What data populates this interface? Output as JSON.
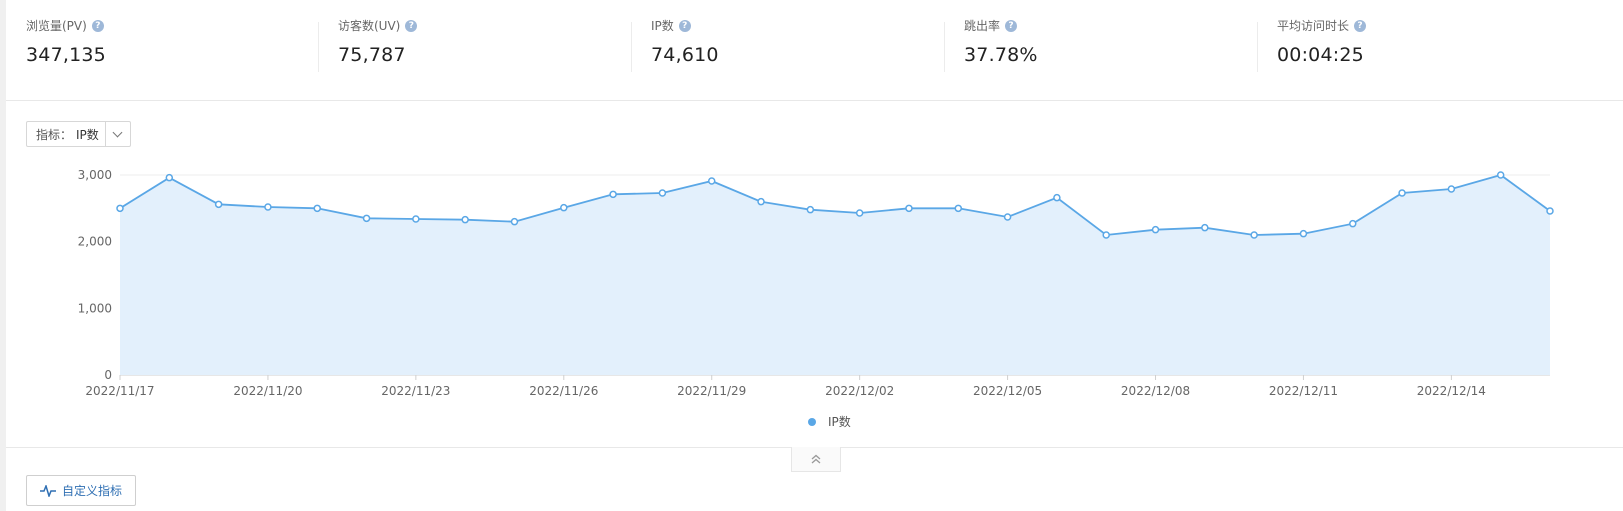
{
  "stats": [
    {
      "label": "浏览量(PV)",
      "value": "347,135"
    },
    {
      "label": "访客数(UV)",
      "value": "75,787"
    },
    {
      "label": "IP数",
      "value": "74,610"
    },
    {
      "label": "跳出率",
      "value": "37.78%"
    },
    {
      "label": "平均访问时长",
      "value": "00:04:25"
    }
  ],
  "metric_selector": {
    "label": "指标：",
    "value": "IP数"
  },
  "legend": {
    "label": "IP数"
  },
  "custom_metric_button": {
    "label": "自定义指标"
  },
  "colors": {
    "line": "#5aa7e6",
    "area": "#e3f0fc",
    "grid": "#ececec"
  },
  "chart_data": {
    "type": "area",
    "x": [
      "2022/11/17",
      "2022/11/18",
      "2022/11/19",
      "2022/11/20",
      "2022/11/21",
      "2022/11/22",
      "2022/11/23",
      "2022/11/24",
      "2022/11/25",
      "2022/11/26",
      "2022/11/27",
      "2022/11/28",
      "2022/11/29",
      "2022/11/30",
      "2022/12/01",
      "2022/12/02",
      "2022/12/03",
      "2022/12/04",
      "2022/12/05",
      "2022/12/06",
      "2022/12/07",
      "2022/12/08",
      "2022/12/09",
      "2022/12/10",
      "2022/12/11",
      "2022/12/12",
      "2022/12/13",
      "2022/12/14",
      "2022/12/15",
      "2022/12/16"
    ],
    "series": [
      {
        "name": "IP数",
        "values": [
          2500,
          2960,
          2560,
          2520,
          2500,
          2350,
          2340,
          2330,
          2300,
          2510,
          2710,
          2730,
          2910,
          2600,
          2480,
          2430,
          2500,
          2500,
          2370,
          2660,
          2100,
          2180,
          2210,
          2100,
          2120,
          2270,
          2730,
          2790,
          3000,
          2460
        ]
      }
    ],
    "x_tick_labels": [
      "2022/11/17",
      "2022/11/20",
      "2022/11/23",
      "2022/11/26",
      "2022/11/29",
      "2022/12/02",
      "2022/12/05",
      "2022/12/08",
      "2022/12/11",
      "2022/12/14"
    ],
    "y_ticks": [
      0,
      1000,
      2000,
      3000
    ],
    "y_tick_labels": [
      "0",
      "1,000",
      "2,000",
      "3,000"
    ],
    "ylim": [
      0,
      3000
    ],
    "grid": true,
    "legend_position": "bottom-center"
  }
}
